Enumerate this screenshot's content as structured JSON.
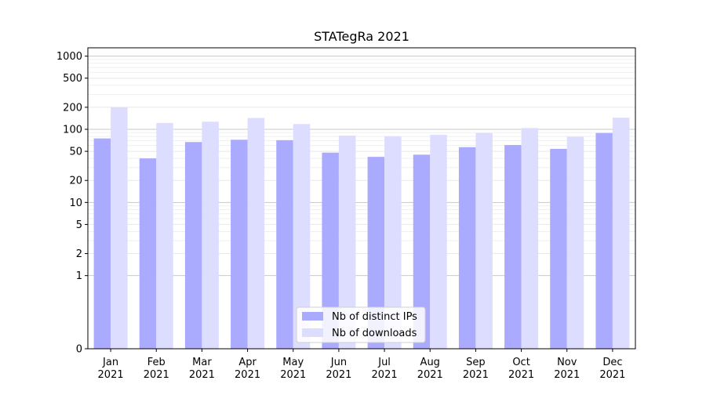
{
  "chart_data": {
    "type": "bar",
    "title": "STATegRa 2021",
    "xlabel": "",
    "ylabel": "",
    "yscale": "symlog",
    "ylim": [
      0,
      1300
    ],
    "y_ticks": [
      0,
      1,
      2,
      5,
      10,
      20,
      50,
      100,
      200,
      500,
      1000
    ],
    "grid": "horizontal",
    "legend_position": "lower-center",
    "categories": [
      [
        "Jan",
        "2021"
      ],
      [
        "Feb",
        "2021"
      ],
      [
        "Mar",
        "2021"
      ],
      [
        "Apr",
        "2021"
      ],
      [
        "May",
        "2021"
      ],
      [
        "Jun",
        "2021"
      ],
      [
        "Jul",
        "2021"
      ],
      [
        "Aug",
        "2021"
      ],
      [
        "Sep",
        "2021"
      ],
      [
        "Oct",
        "2021"
      ],
      [
        "Nov",
        "2021"
      ],
      [
        "Dec",
        "2021"
      ]
    ],
    "series": [
      {
        "name": "Nb of distinct IPs",
        "color": "#aaaaff",
        "values": [
          75,
          40,
          67,
          72,
          71,
          48,
          42,
          45,
          57,
          61,
          54,
          89
        ]
      },
      {
        "name": "Nb of downloads",
        "color": "#ddddff",
        "values": [
          200,
          122,
          127,
          143,
          118,
          82,
          80,
          84,
          89,
          104,
          79,
          144
        ]
      }
    ]
  }
}
